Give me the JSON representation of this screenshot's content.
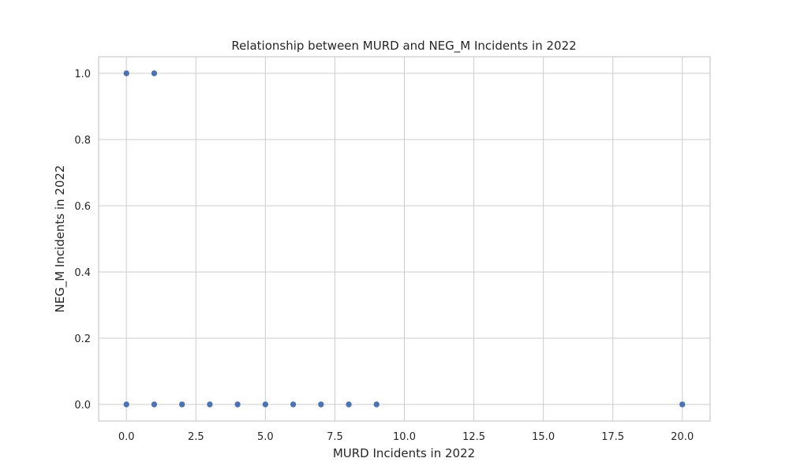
{
  "chart_data": {
    "type": "scatter",
    "title": "Relationship between MURD and NEG_M Incidents in 2022",
    "xlabel": "MURD Incidents in 2022",
    "ylabel": "NEG_M Incidents in 2022",
    "xlim": [
      -1,
      21
    ],
    "ylim": [
      -0.05,
      1.05
    ],
    "xticks": [
      0,
      2.5,
      5,
      7.5,
      10,
      12.5,
      15,
      17.5,
      20
    ],
    "xtick_labels": [
      "0.0",
      "2.5",
      "5.0",
      "7.5",
      "10.0",
      "12.5",
      "15.0",
      "17.5",
      "20.0"
    ],
    "yticks": [
      0,
      0.2,
      0.4,
      0.6,
      0.8,
      1.0
    ],
    "ytick_labels": [
      "0.0",
      "0.2",
      "0.4",
      "0.6",
      "0.8",
      "1.0"
    ],
    "grid": true,
    "color": "#4c72b0",
    "points": [
      {
        "x": 0,
        "y": 1
      },
      {
        "x": 1,
        "y": 1
      },
      {
        "x": 0,
        "y": 0
      },
      {
        "x": 1,
        "y": 0
      },
      {
        "x": 2,
        "y": 0
      },
      {
        "x": 3,
        "y": 0
      },
      {
        "x": 4,
        "y": 0
      },
      {
        "x": 5,
        "y": 0
      },
      {
        "x": 6,
        "y": 0
      },
      {
        "x": 7,
        "y": 0
      },
      {
        "x": 8,
        "y": 0
      },
      {
        "x": 9,
        "y": 0
      },
      {
        "x": 20,
        "y": 0
      }
    ]
  }
}
